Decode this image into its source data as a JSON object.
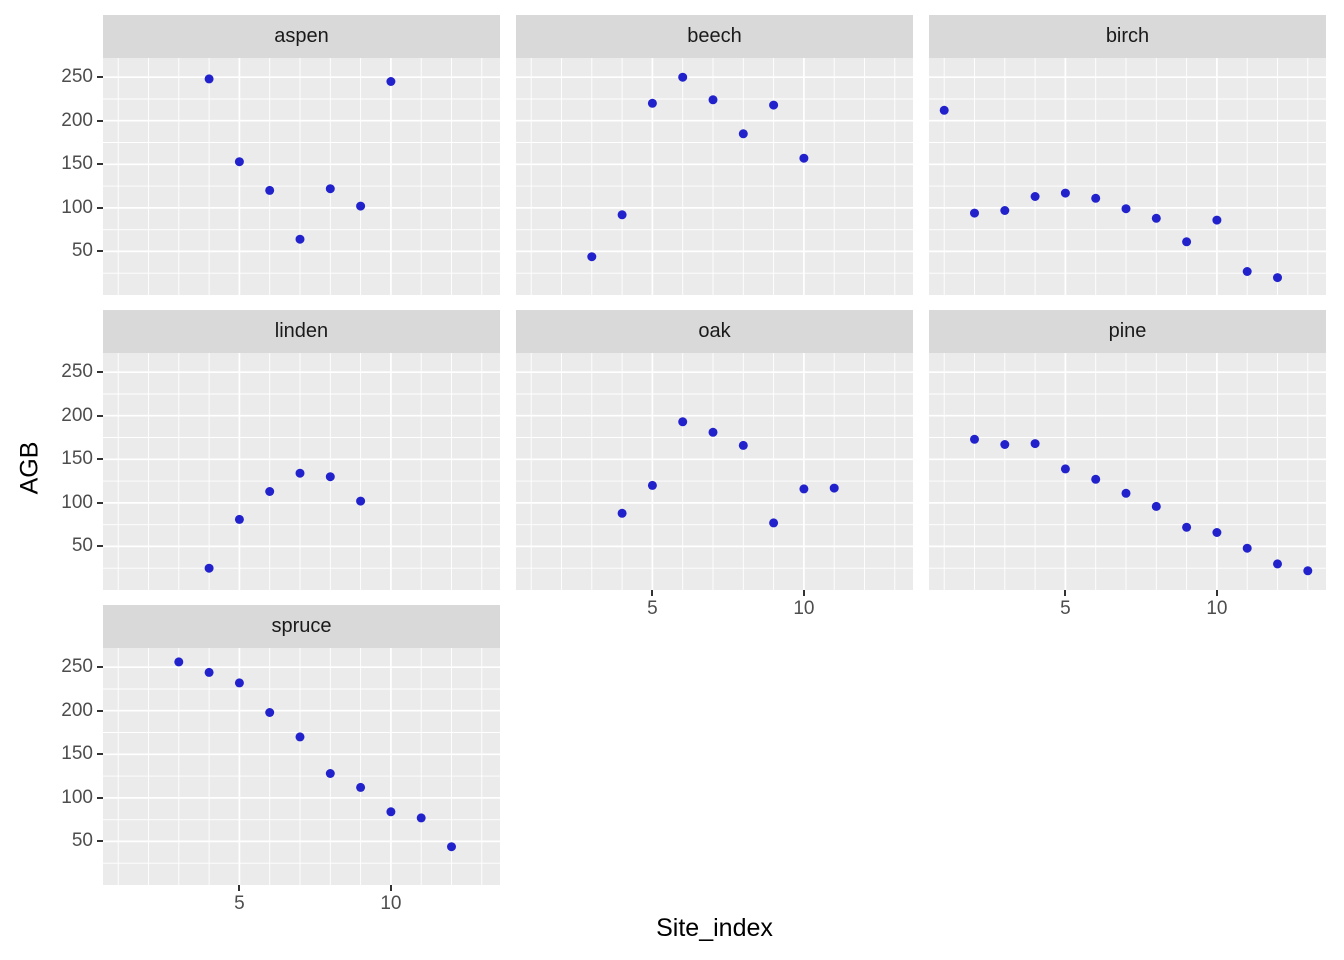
{
  "style": {
    "background": "#FFFFFF",
    "panel_bg": "#EBEBEB",
    "strip_bg": "#D9D9D9",
    "grid_color": "#FFFFFF",
    "point_color": "#2222CC",
    "tick_mark_color": "#333333",
    "tick_label_color": "#4D4D4D",
    "title_color": "#000000"
  },
  "chart_data": {
    "type": "scatter",
    "title": "",
    "xlabel": "Site_index",
    "ylabel": "AGB",
    "legend_position": "none",
    "grid": "major+minor white on gray panels",
    "x_ticks": [
      5,
      10
    ],
    "y_ticks": [
      50,
      100,
      150,
      200,
      250
    ],
    "x_range": [
      0.5,
      13.6
    ],
    "y_range": [
      0,
      272
    ],
    "x_minor_step": 1,
    "y_minor_step": 25,
    "facet_by": "species",
    "facets": [
      {
        "label": "aspen",
        "points": [
          [
            4,
            248
          ],
          [
            5,
            153
          ],
          [
            6,
            120
          ],
          [
            7,
            64
          ],
          [
            8,
            122
          ],
          [
            9,
            102
          ],
          [
            10,
            245
          ]
        ]
      },
      {
        "label": "beech",
        "points": [
          [
            3,
            44
          ],
          [
            4,
            92
          ],
          [
            5,
            220
          ],
          [
            6,
            250
          ],
          [
            7,
            224
          ],
          [
            8,
            185
          ],
          [
            9,
            218
          ],
          [
            10,
            157
          ]
        ]
      },
      {
        "label": "birch",
        "points": [
          [
            1,
            212
          ],
          [
            2,
            94
          ],
          [
            3,
            97
          ],
          [
            4,
            113
          ],
          [
            5,
            117
          ],
          [
            6,
            111
          ],
          [
            7,
            99
          ],
          [
            8,
            88
          ],
          [
            9,
            61
          ],
          [
            10,
            86
          ],
          [
            11,
            27
          ],
          [
            12,
            20
          ]
        ]
      },
      {
        "label": "linden",
        "points": [
          [
            4,
            25
          ],
          [
            5,
            81
          ],
          [
            6,
            113
          ],
          [
            7,
            134
          ],
          [
            8,
            130
          ],
          [
            9,
            102
          ]
        ]
      },
      {
        "label": "oak",
        "points": [
          [
            4,
            88
          ],
          [
            5,
            120
          ],
          [
            6,
            193
          ],
          [
            7,
            181
          ],
          [
            8,
            166
          ],
          [
            9,
            77
          ],
          [
            10,
            116
          ],
          [
            11,
            117
          ]
        ]
      },
      {
        "label": "pine",
        "points": [
          [
            2,
            173
          ],
          [
            3,
            167
          ],
          [
            4,
            168
          ],
          [
            5,
            139
          ],
          [
            6,
            127
          ],
          [
            7,
            111
          ],
          [
            8,
            96
          ],
          [
            9,
            72
          ],
          [
            10,
            66
          ],
          [
            11,
            48
          ],
          [
            12,
            30
          ],
          [
            13,
            22
          ]
        ]
      },
      {
        "label": "spruce",
        "points": [
          [
            3,
            256
          ],
          [
            4,
            244
          ],
          [
            5,
            232
          ],
          [
            6,
            198
          ],
          [
            7,
            170
          ],
          [
            8,
            128
          ],
          [
            9,
            112
          ],
          [
            10,
            84
          ],
          [
            11,
            77
          ],
          [
            12,
            44
          ]
        ]
      }
    ]
  }
}
